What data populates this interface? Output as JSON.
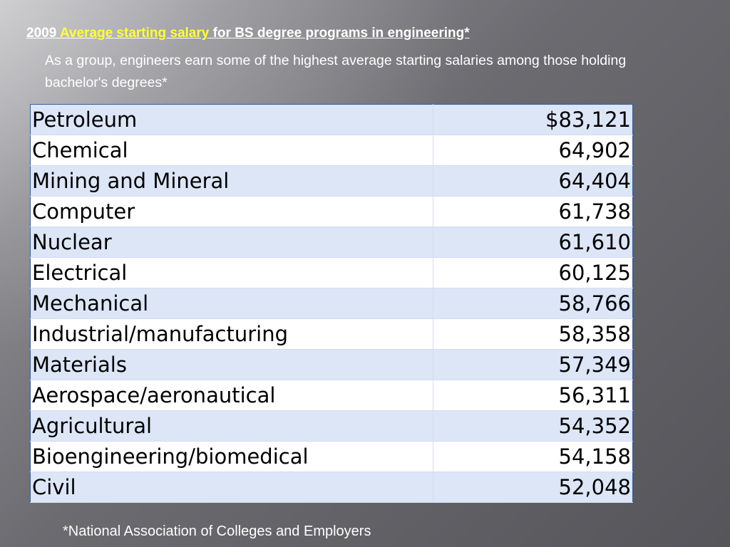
{
  "heading": {
    "year": "2009",
    "highlight": "Average starting salary",
    "rest": "for BS degree programs in engineering*"
  },
  "subtitle": "As a group, engineers earn some of the highest average starting salaries among those holding bachelor's degrees*",
  "table": {
    "rows": [
      {
        "program": "Petroleum",
        "salary": "$83,121"
      },
      {
        "program": "Chemical",
        "salary": "64,902"
      },
      {
        "program": "Mining and Mineral",
        "salary": "64,404"
      },
      {
        "program": "Computer",
        "salary": "61,738"
      },
      {
        "program": "Nuclear",
        "salary": "61,610"
      },
      {
        "program": "Electrical",
        "salary": "60,125"
      },
      {
        "program": "Mechanical",
        "salary": "58,766"
      },
      {
        "program": "Industrial/manufacturing",
        "salary": "58,358"
      },
      {
        "program": "Materials",
        "salary": "57,349"
      },
      {
        "program": "Aerospace/aeronautical",
        "salary": "56,311"
      },
      {
        "program": "Agricultural",
        "salary": "54,352"
      },
      {
        "program": "Bioengineering/biomedical",
        "salary": "54,158"
      },
      {
        "program": "Civil",
        "salary": "52,048"
      }
    ]
  },
  "footnote": "*National Association of Colleges and Employers",
  "colors": {
    "highlight": "#ffff33",
    "table_border": "#3a5f9c",
    "row_band": "#dce6f7"
  }
}
